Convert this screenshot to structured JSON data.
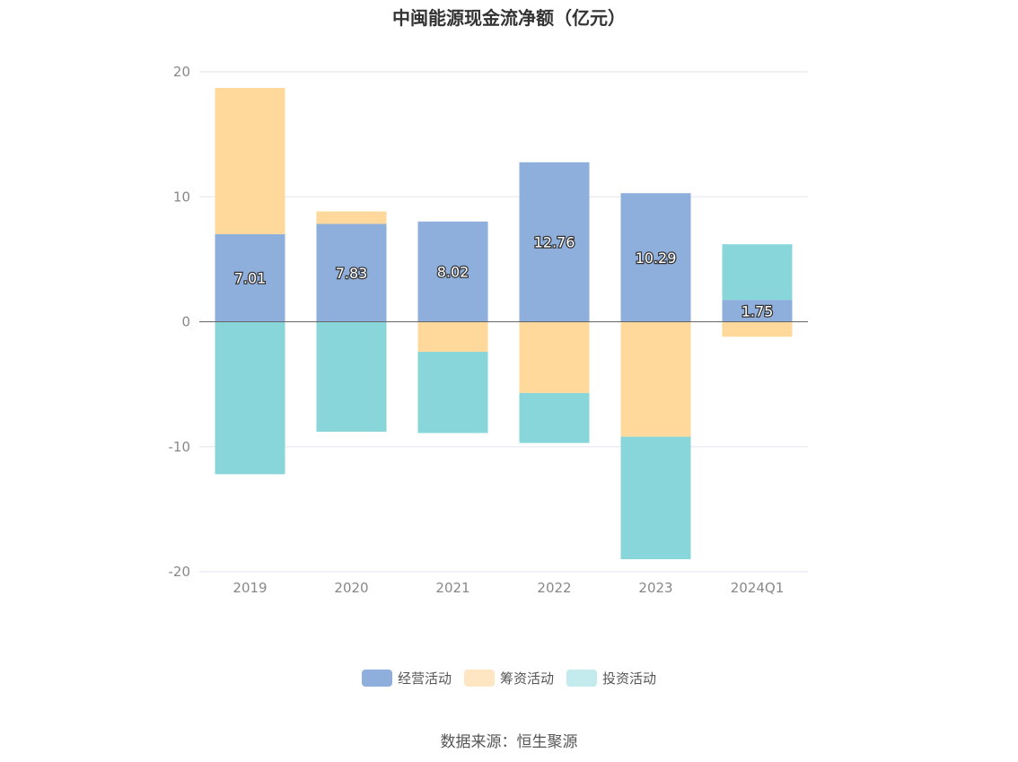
{
  "title": "中闽能源现金流净额（亿元）",
  "source": "数据来源：恒生聚源",
  "colors": {
    "operating": "#8eaedb",
    "financing": "#ffd99b",
    "investing": "#88d6da",
    "grid": "#e2e6f0",
    "zero_line": "#666666",
    "tick_text": "#888888"
  },
  "legend": [
    {
      "label": "经营活动",
      "color": "#8eaedb"
    },
    {
      "label": "筹资活动",
      "color": "#ffe6c3"
    },
    {
      "label": "投资活动",
      "color": "#c3ebed"
    }
  ],
  "chart_data": {
    "type": "bar",
    "stacked": true,
    "title": "中闽能源现金流净额（亿元）",
    "categories": [
      "2019",
      "2020",
      "2021",
      "2022",
      "2023",
      "2024Q1"
    ],
    "series": [
      {
        "name": "经营活动",
        "values": [
          7.01,
          7.83,
          8.02,
          12.76,
          10.29,
          1.75
        ],
        "show_labels": true
      },
      {
        "name": "筹资活动",
        "values": [
          11.7,
          1.0,
          -2.4,
          -5.7,
          -9.2,
          -1.2
        ],
        "show_labels": false
      },
      {
        "name": "投资活动",
        "values": [
          -12.2,
          -8.8,
          -6.5,
          -4.0,
          -9.8,
          4.45
        ],
        "show_labels": false
      }
    ],
    "ylim": [
      -20,
      20
    ],
    "yticks": [
      20,
      10,
      0,
      -10,
      -20
    ],
    "ytick_labels": [
      "20",
      "10",
      "0",
      "-10",
      "-20"
    ],
    "grid": true,
    "legend_position": "bottom"
  }
}
